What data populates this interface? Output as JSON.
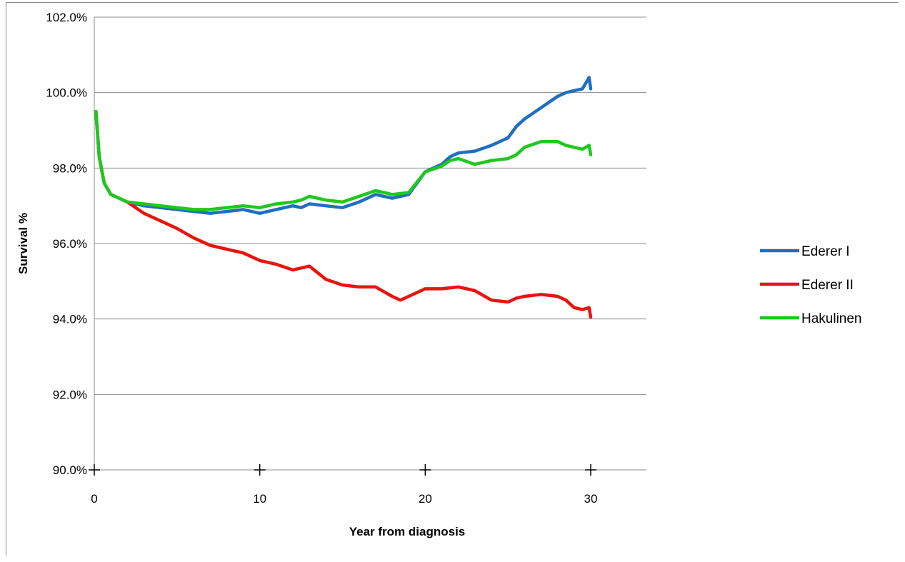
{
  "chart_data": {
    "type": "line",
    "title": "",
    "xlabel": "Year from diagnosis",
    "ylabel": "Survival %",
    "xlim": [
      0,
      33
    ],
    "ylim": [
      90,
      102
    ],
    "x_ticks": [
      0,
      10,
      20,
      30
    ],
    "y_ticks": [
      90,
      92,
      94,
      96,
      98,
      100,
      102
    ],
    "y_tick_labels": [
      "90.0%",
      "92.0%",
      "94.0%",
      "96.0%",
      "98.0%",
      "100.0%",
      "102.0%"
    ],
    "grid": "horizontal",
    "legend_position": "right",
    "series": [
      {
        "name": "Ederer I",
        "color": "#1f6fbf",
        "x": [
          0.1,
          0.3,
          0.6,
          1,
          1.5,
          2,
          3,
          4,
          5,
          6,
          7,
          8,
          9,
          10,
          11,
          12,
          12.5,
          13,
          14,
          15,
          16,
          17,
          18,
          19,
          20,
          21,
          21.5,
          22,
          23,
          24,
          25,
          25.5,
          26,
          27,
          28,
          28.5,
          29,
          29.5,
          29.9,
          30
        ],
        "y": [
          99.5,
          98.3,
          97.6,
          97.3,
          97.2,
          97.1,
          97.0,
          96.95,
          96.9,
          96.85,
          96.8,
          96.85,
          96.9,
          96.8,
          96.9,
          97.0,
          96.95,
          97.05,
          97.0,
          96.95,
          97.1,
          97.3,
          97.2,
          97.3,
          97.9,
          98.1,
          98.3,
          98.4,
          98.45,
          98.6,
          98.8,
          99.1,
          99.3,
          99.6,
          99.9,
          100.0,
          100.05,
          100.1,
          100.4,
          100.1
        ]
      },
      {
        "name": "Ederer II",
        "color": "#e8140f",
        "x": [
          0.1,
          0.3,
          0.6,
          1,
          1.5,
          2,
          3,
          4,
          5,
          6,
          7,
          8,
          9,
          10,
          11,
          12,
          12.5,
          13,
          14,
          15,
          16,
          17,
          18,
          18.5,
          19,
          20,
          21,
          22,
          23,
          24,
          25,
          25.5,
          26,
          27,
          28,
          28.5,
          29,
          29.5,
          29.9,
          30
        ],
        "y": [
          99.5,
          98.3,
          97.6,
          97.3,
          97.2,
          97.1,
          96.8,
          96.6,
          96.4,
          96.15,
          95.95,
          95.85,
          95.75,
          95.55,
          95.45,
          95.3,
          95.35,
          95.4,
          95.05,
          94.9,
          94.85,
          94.85,
          94.6,
          94.5,
          94.6,
          94.8,
          94.8,
          94.85,
          94.75,
          94.5,
          94.45,
          94.55,
          94.6,
          94.65,
          94.6,
          94.5,
          94.3,
          94.25,
          94.3,
          94.05
        ]
      },
      {
        "name": "Hakulinen",
        "color": "#1ec81e",
        "x": [
          0.1,
          0.3,
          0.6,
          1,
          1.5,
          2,
          3,
          4,
          5,
          6,
          7,
          8,
          9,
          10,
          11,
          12,
          12.5,
          13,
          14,
          15,
          16,
          17,
          18,
          19,
          20,
          21,
          21.5,
          22,
          23,
          24,
          25,
          25.5,
          26,
          27,
          28,
          28.5,
          29,
          29.5,
          29.9,
          30
        ],
        "y": [
          99.5,
          98.3,
          97.6,
          97.3,
          97.2,
          97.1,
          97.05,
          97.0,
          96.95,
          96.9,
          96.9,
          96.95,
          97.0,
          96.95,
          97.05,
          97.1,
          97.15,
          97.25,
          97.15,
          97.1,
          97.25,
          97.4,
          97.3,
          97.35,
          97.9,
          98.05,
          98.2,
          98.25,
          98.1,
          98.2,
          98.25,
          98.35,
          98.55,
          98.7,
          98.7,
          98.6,
          98.55,
          98.5,
          98.6,
          98.35
        ]
      }
    ]
  }
}
